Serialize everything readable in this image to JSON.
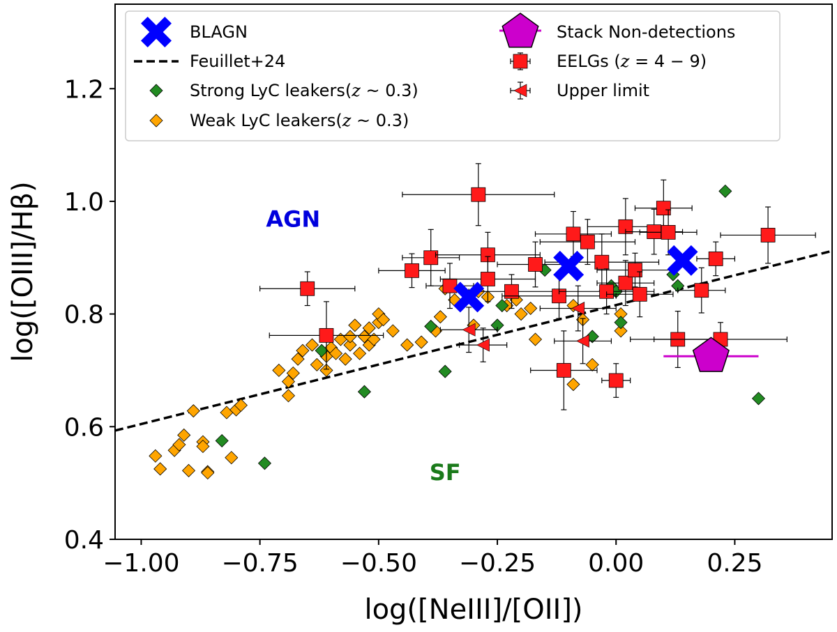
{
  "chart_data": {
    "type": "scatter",
    "xlabel": "log([NeIII]/[OII])",
    "ylabel": "log([OIII]/Hβ)",
    "xlim": [
      -1.055,
      0.455
    ],
    "ylim": [
      0.4,
      1.35
    ],
    "x_ticks": [
      -1.0,
      -0.75,
      -0.5,
      -0.25,
      0.0,
      0.25
    ],
    "x_tick_labels": [
      "−1.00",
      "−0.75",
      "−0.50",
      "−0.25",
      "0.00",
      "0.25"
    ],
    "y_ticks": [
      0.4,
      0.6,
      0.8,
      1.0,
      1.2
    ],
    "y_tick_labels": [
      "0.4",
      "0.6",
      "0.8",
      "1.0",
      "1.2"
    ],
    "grid": false,
    "legend_position": "top",
    "region_labels": [
      {
        "text": "AGN",
        "x": -0.68,
        "y": 0.955,
        "color": "#0000dd"
      },
      {
        "text": "SF",
        "x": -0.36,
        "y": 0.505,
        "color": "#1a7a1a"
      }
    ],
    "series": [
      {
        "name": "BLAGN",
        "marker": "x",
        "color": "#0000ff",
        "points": [
          [
            -0.31,
            0.83
          ],
          [
            -0.1,
            0.885
          ],
          [
            0.14,
            0.895
          ]
        ]
      },
      {
        "name": "Feuillet+24",
        "marker": "dashed-line",
        "color": "#000000",
        "line": [
          [
            -1.055,
            0.593
          ],
          [
            0.455,
            0.912
          ]
        ]
      },
      {
        "name": "Strong LyC leakers(z ~ 0.3)",
        "legend_label": "Strong LyC leakers(",
        "legend_math": "z",
        "legend_suffix": " ~ 0.3)",
        "marker": "diamond",
        "color": "#228b22",
        "points": [
          [
            -0.83,
            0.575
          ],
          [
            -0.74,
            0.535
          ],
          [
            -0.62,
            0.735
          ],
          [
            -0.53,
            0.662
          ],
          [
            -0.39,
            0.778
          ],
          [
            -0.36,
            0.698
          ],
          [
            -0.25,
            0.78
          ],
          [
            -0.24,
            0.815
          ],
          [
            -0.15,
            0.878
          ],
          [
            -0.05,
            0.76
          ],
          [
            -0.01,
            0.85
          ],
          [
            0.0,
            0.84
          ],
          [
            0.01,
            0.785
          ],
          [
            0.12,
            0.87
          ],
          [
            0.13,
            0.85
          ],
          [
            0.23,
            1.018
          ],
          [
            0.3,
            0.65
          ]
        ]
      },
      {
        "name": "Weak LyC leakers(z ~ 0.3)",
        "legend_label": "Weak LyC leakers(",
        "legend_math": "z",
        "legend_suffix": " ~ 0.3)",
        "marker": "diamond",
        "color": "#ffa500",
        "points": [
          [
            -0.97,
            0.548
          ],
          [
            -0.96,
            0.525
          ],
          [
            -0.93,
            0.558
          ],
          [
            -0.92,
            0.568
          ],
          [
            -0.91,
            0.585
          ],
          [
            -0.9,
            0.522
          ],
          [
            -0.89,
            0.628
          ],
          [
            -0.87,
            0.573
          ],
          [
            -0.87,
            0.565
          ],
          [
            -0.86,
            0.52
          ],
          [
            -0.86,
            0.518
          ],
          [
            -0.82,
            0.625
          ],
          [
            -0.81,
            0.545
          ],
          [
            -0.8,
            0.63
          ],
          [
            -0.79,
            0.638
          ],
          [
            -0.71,
            0.7
          ],
          [
            -0.69,
            0.655
          ],
          [
            -0.69,
            0.68
          ],
          [
            -0.68,
            0.695
          ],
          [
            -0.67,
            0.72
          ],
          [
            -0.66,
            0.735
          ],
          [
            -0.64,
            0.745
          ],
          [
            -0.63,
            0.71
          ],
          [
            -0.61,
            0.725
          ],
          [
            -0.61,
            0.7
          ],
          [
            -0.6,
            0.74
          ],
          [
            -0.59,
            0.73
          ],
          [
            -0.58,
            0.755
          ],
          [
            -0.57,
            0.72
          ],
          [
            -0.56,
            0.745
          ],
          [
            -0.56,
            0.76
          ],
          [
            -0.55,
            0.78
          ],
          [
            -0.54,
            0.73
          ],
          [
            -0.53,
            0.76
          ],
          [
            -0.52,
            0.745
          ],
          [
            -0.52,
            0.775
          ],
          [
            -0.51,
            0.755
          ],
          [
            -0.5,
            0.785
          ],
          [
            -0.5,
            0.8
          ],
          [
            -0.49,
            0.79
          ],
          [
            -0.47,
            0.77
          ],
          [
            -0.44,
            0.745
          ],
          [
            -0.41,
            0.75
          ],
          [
            -0.38,
            0.77
          ],
          [
            -0.37,
            0.795
          ],
          [
            -0.36,
            0.845
          ],
          [
            -0.34,
            0.825
          ],
          [
            -0.3,
            0.78
          ],
          [
            -0.29,
            0.84
          ],
          [
            -0.27,
            0.83
          ],
          [
            -0.23,
            0.815
          ],
          [
            -0.21,
            0.825
          ],
          [
            -0.2,
            0.8
          ],
          [
            -0.18,
            0.81
          ],
          [
            -0.17,
            0.755
          ],
          [
            -0.09,
            0.815
          ],
          [
            -0.07,
            0.79
          ],
          [
            -0.05,
            0.71
          ],
          [
            -0.09,
            0.675
          ],
          [
            0.01,
            0.8
          ],
          [
            0.01,
            0.77
          ]
        ]
      },
      {
        "name": "Stack Non-detections",
        "marker": "pentagon",
        "color": "#cc00cc",
        "points": [
          [
            0.2,
            0.725
          ]
        ],
        "xerr_range": [
          0.1,
          0.3
        ]
      },
      {
        "name": "EELGs (z = 4 − 9)",
        "legend_label": "EELGs (",
        "legend_math": "z",
        "legend_suffix": " = 4 − 9)",
        "marker": "square",
        "color": "#ff1a1a",
        "points": [
          {
            "x": -0.65,
            "y": 0.845,
            "xerr": 0.1,
            "yerr": 0.03
          },
          {
            "x": -0.61,
            "y": 0.762,
            "xerr": 0.12,
            "yerr": 0.06
          },
          {
            "x": -0.43,
            "y": 0.877,
            "xerr": 0.07,
            "yerr": 0.03
          },
          {
            "x": -0.39,
            "y": 0.9,
            "xerr": 0.06,
            "yerr": 0.05
          },
          {
            "x": -0.35,
            "y": 0.85,
            "xerr": 0.05,
            "yerr": 0.04
          },
          {
            "x": -0.29,
            "y": 1.012,
            "xerr": 0.16,
            "yerr": 0.055
          },
          {
            "x": -0.27,
            "y": 0.905,
            "xerr": 0.11,
            "yerr": 0.04
          },
          {
            "x": -0.27,
            "y": 0.862,
            "xerr": 0.1,
            "yerr": 0.04
          },
          {
            "x": -0.22,
            "y": 0.84,
            "xerr": 0.09,
            "yerr": 0.03
          },
          {
            "x": -0.17,
            "y": 0.888,
            "xerr": 0.08,
            "yerr": 0.04
          },
          {
            "x": -0.12,
            "y": 0.832,
            "xerr": 0.12,
            "yerr": 0.04
          },
          {
            "x": -0.11,
            "y": 0.7,
            "xerr": 0.07,
            "yerr": 0.07
          },
          {
            "x": -0.09,
            "y": 0.942,
            "xerr": 0.08,
            "yerr": 0.04
          },
          {
            "x": -0.06,
            "y": 0.928,
            "xerr": 0.1,
            "yerr": 0.04
          },
          {
            "x": -0.03,
            "y": 0.892,
            "xerr": 0.12,
            "yerr": 0.05
          },
          {
            "x": -0.02,
            "y": 0.84,
            "xerr": 0.1,
            "yerr": 0.04
          },
          {
            "x": 0.0,
            "y": 0.682,
            "xerr": 0.03,
            "yerr": 0.03
          },
          {
            "x": 0.02,
            "y": 0.855,
            "xerr": 0.06,
            "yerr": 0.04
          },
          {
            "x": 0.02,
            "y": 0.955,
            "xerr": 0.08,
            "yerr": 0.05
          },
          {
            "x": 0.04,
            "y": 0.878,
            "xerr": 0.08,
            "yerr": 0.03
          },
          {
            "x": 0.05,
            "y": 0.835,
            "xerr": 0.07,
            "yerr": 0.04
          },
          {
            "x": 0.08,
            "y": 0.946,
            "xerr": 0.06,
            "yerr": 0.04
          },
          {
            "x": 0.1,
            "y": 0.988,
            "xerr": 0.06,
            "yerr": 0.05
          },
          {
            "x": 0.11,
            "y": 0.945,
            "xerr": 0.06,
            "yerr": 0.04
          },
          {
            "x": 0.13,
            "y": 0.755,
            "xerr": 0.1,
            "yerr": 0.05
          },
          {
            "x": 0.18,
            "y": 0.842,
            "xerr": 0.05,
            "yerr": 0.04
          },
          {
            "x": 0.21,
            "y": 0.898,
            "xerr": 0.04,
            "yerr": 0.03
          },
          {
            "x": 0.22,
            "y": 0.755,
            "xerr": 0.14,
            "yerr": 0.03
          },
          {
            "x": 0.32,
            "y": 0.94,
            "xerr": 0.1,
            "yerr": 0.05
          }
        ]
      },
      {
        "name": "Upper limit",
        "marker": "left-triangle",
        "color": "#ff1a1a",
        "points": [
          {
            "x": -0.31,
            "y": 0.772,
            "xerr": 0.06,
            "yerr": 0.04
          },
          {
            "x": -0.28,
            "y": 0.745,
            "xerr": 0.05,
            "yerr": 0.03
          },
          {
            "x": -0.07,
            "y": 0.752,
            "xerr": 0.06,
            "yerr": 0.04
          },
          {
            "x": -0.08,
            "y": 0.81,
            "xerr": 0.08,
            "yerr": 0.04
          }
        ]
      }
    ]
  }
}
